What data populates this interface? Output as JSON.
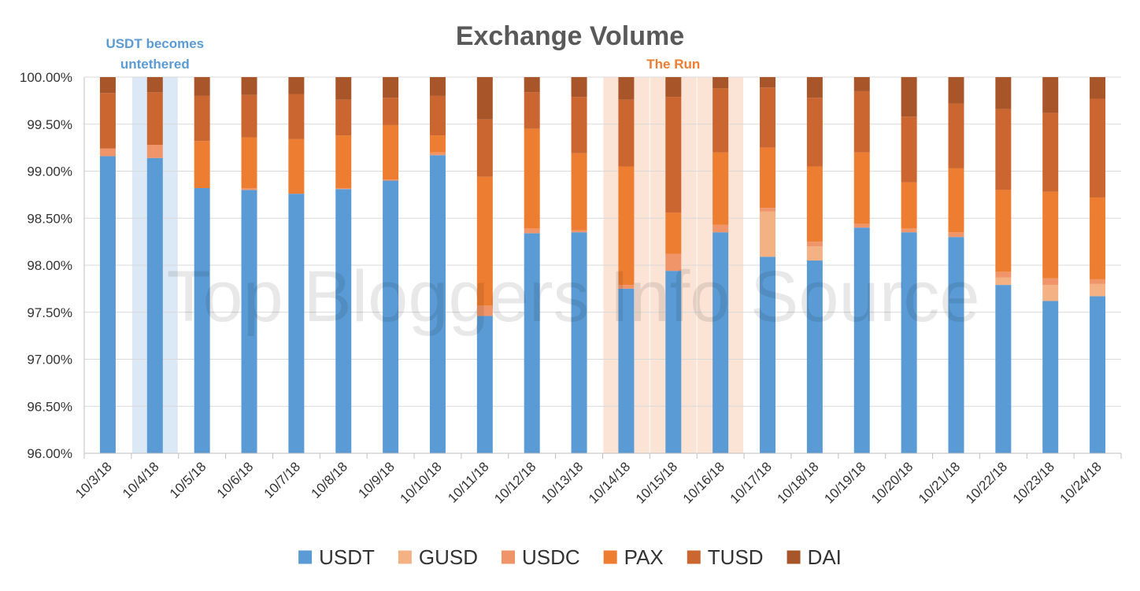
{
  "chart_data": {
    "type": "bar",
    "stacked": true,
    "title": "Exchange Volume",
    "xlabel": "",
    "ylabel": "",
    "ylim": [
      96.0,
      100.0
    ],
    "y_ticks": [
      "96.00%",
      "96.50%",
      "97.00%",
      "97.50%",
      "98.00%",
      "98.50%",
      "99.00%",
      "99.50%",
      "100.00%"
    ],
    "grid": true,
    "legend_position": "bottom",
    "categories": [
      "10/3/18",
      "10/4/18",
      "10/5/18",
      "10/6/18",
      "10/7/18",
      "10/8/18",
      "10/9/18",
      "10/10/18",
      "10/11/18",
      "10/12/18",
      "10/13/18",
      "10/14/18",
      "10/15/18",
      "10/16/18",
      "10/17/18",
      "10/18/18",
      "10/19/18",
      "10/20/18",
      "10/21/18",
      "10/22/18",
      "10/23/18",
      "10/24/18"
    ],
    "series": [
      {
        "name": "USDT",
        "color": "#5b9bd5",
        "cumulative": [
          99.16,
          99.14,
          98.82,
          98.8,
          98.76,
          98.81,
          98.9,
          99.17,
          97.46,
          98.34,
          98.35,
          97.75,
          97.94,
          98.35,
          98.09,
          98.05,
          98.4,
          98.35,
          98.3,
          97.79,
          97.62,
          97.67
        ]
      },
      {
        "name": "GUSD",
        "color": "#f4b183",
        "cumulative": [
          99.16,
          99.14,
          98.82,
          98.8,
          98.76,
          98.81,
          98.9,
          99.17,
          97.46,
          98.34,
          98.35,
          97.75,
          97.94,
          98.35,
          98.57,
          98.2,
          98.4,
          98.35,
          98.3,
          97.87,
          97.79,
          97.8
        ]
      },
      {
        "name": "USDC",
        "color": "#f0956a",
        "cumulative": [
          99.24,
          99.28,
          98.82,
          98.82,
          98.76,
          98.82,
          98.91,
          99.2,
          97.57,
          98.39,
          98.37,
          97.79,
          98.12,
          98.43,
          98.61,
          98.25,
          98.44,
          98.39,
          98.35,
          97.93,
          97.86,
          97.85
        ]
      },
      {
        "name": "PAX",
        "color": "#ed7d31",
        "cumulative": [
          99.24,
          99.28,
          99.32,
          99.36,
          99.34,
          99.38,
          99.49,
          99.38,
          98.94,
          99.45,
          99.19,
          99.05,
          98.56,
          99.2,
          99.25,
          99.05,
          99.2,
          98.88,
          99.03,
          98.8,
          98.78,
          98.72
        ]
      },
      {
        "name": "TUSD",
        "color": "#cc6630",
        "cumulative": [
          99.83,
          99.84,
          99.8,
          99.81,
          99.82,
          99.76,
          99.78,
          99.8,
          99.55,
          99.84,
          99.79,
          99.76,
          99.79,
          99.88,
          99.89,
          99.78,
          99.85,
          99.58,
          99.72,
          99.66,
          99.62,
          99.77
        ]
      },
      {
        "name": "DAI",
        "color": "#a9552a",
        "cumulative": [
          100,
          100,
          100,
          100,
          100,
          100,
          100,
          100,
          100,
          100,
          100,
          100,
          100,
          100,
          100,
          100,
          100,
          100,
          100,
          100,
          100,
          100
        ]
      }
    ],
    "annotations": [
      {
        "text_lines": [
          "USDT becomes",
          "untethered"
        ],
        "color": "#5b9bd5",
        "fill": "#dbe8f6",
        "start": "10/4/18",
        "end": "10/4/18"
      },
      {
        "text_lines": [
          "The Run"
        ],
        "color": "#ed7d31",
        "fill": "#fbe3d5",
        "start": "10/14/18",
        "end": "10/16/18"
      }
    ],
    "watermark": "Top Bloggers Info Source"
  }
}
